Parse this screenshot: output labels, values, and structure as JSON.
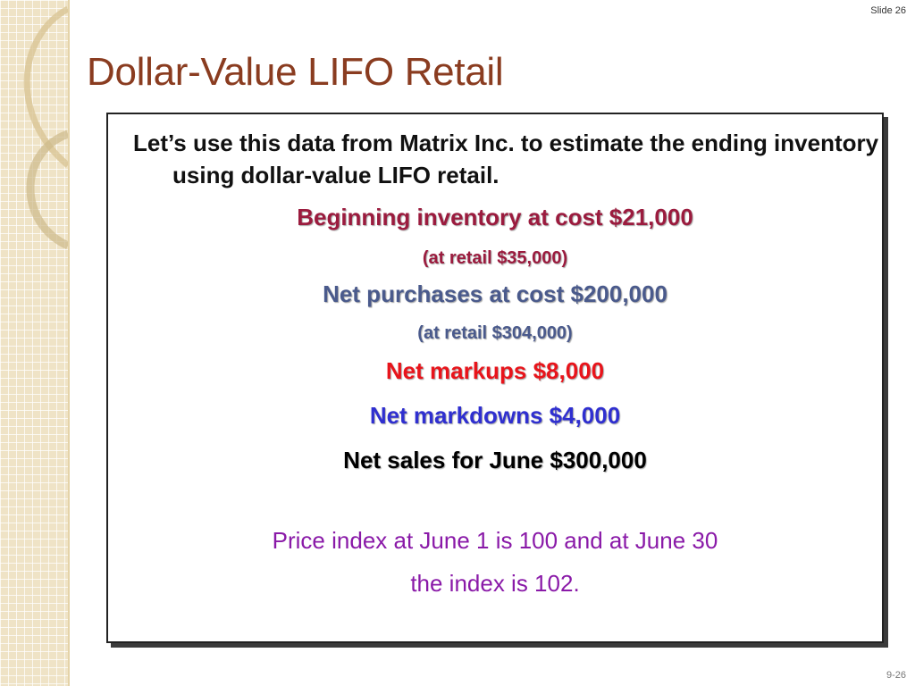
{
  "slide": {
    "number_label": "Slide 26",
    "footer_label": "9-26",
    "title": "Dollar-Value LIFO Retail"
  },
  "content": {
    "intro": "Let’s use this data from Matrix Inc. to estimate the ending inventory using dollar-value LIFO retail.",
    "beginning_cost": "Beginning inventory at cost $21,000",
    "beginning_retail": "(at retail $35,000)",
    "purchases_cost": "Net purchases at cost $200,000",
    "purchases_retail": "(at retail $304,000)",
    "markups": "Net markups $8,000",
    "markdowns": "Net markdowns $4,000",
    "sales": "Net sales for June $300,000",
    "index_line_1": "Price index at June 1 is 100 and at June 30",
    "index_line_2": "the index is 102."
  },
  "colors": {
    "title": "#8a3c20",
    "beginning": "#9b1b3e",
    "purchases": "#4a5a8c",
    "markups": "#e8141b",
    "markdowns": "#2f2fd0",
    "sales": "#000000",
    "index": "#8a1aa8"
  }
}
